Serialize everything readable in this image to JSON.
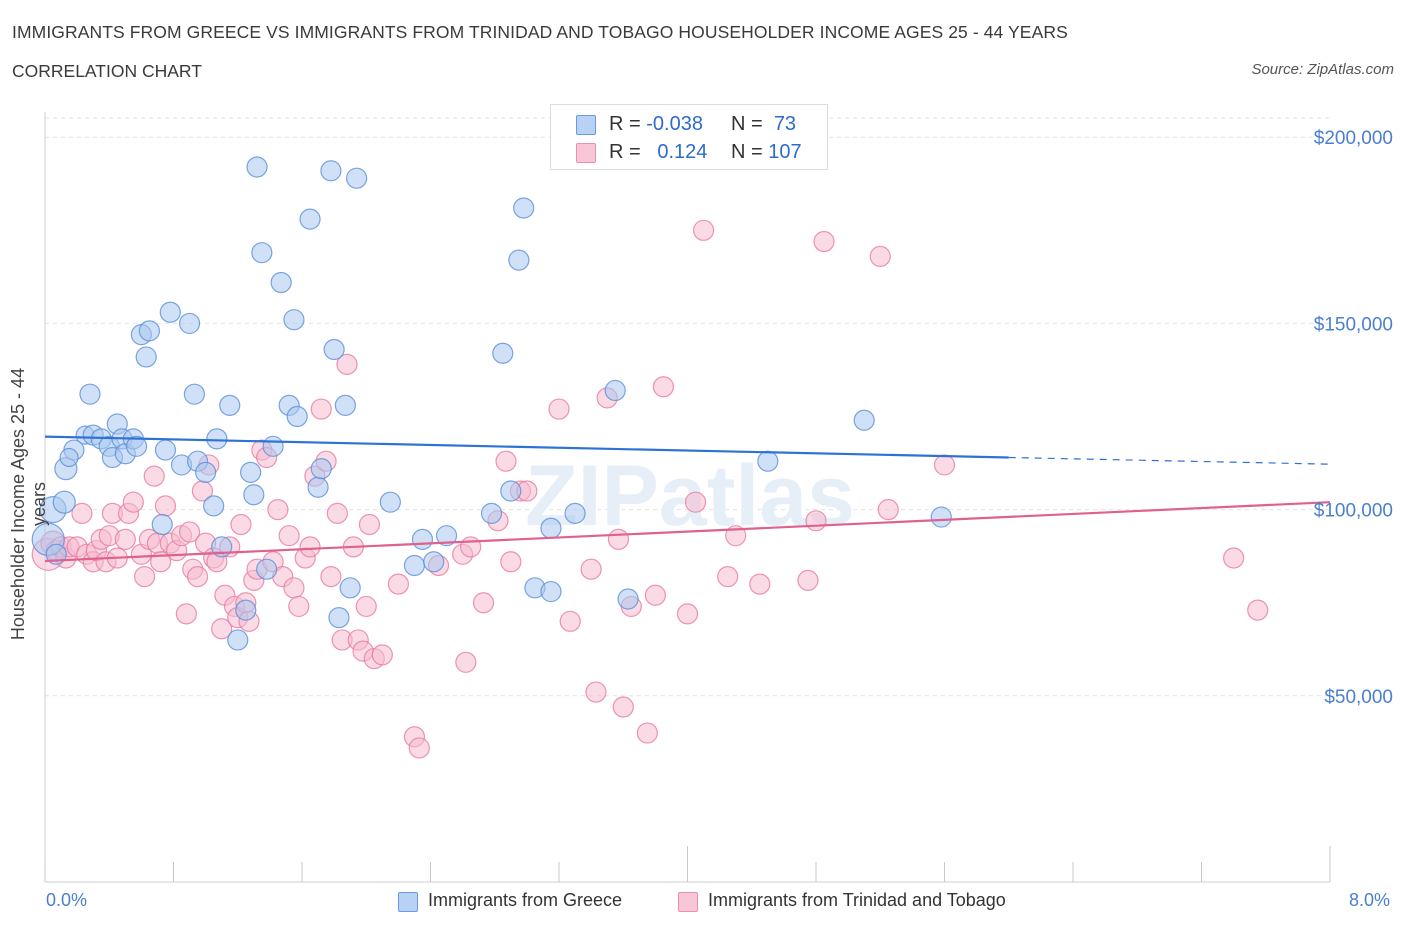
{
  "header": {
    "title": "IMMIGRANTS FROM GREECE VS IMMIGRANTS FROM TRINIDAD AND TOBAGO HOUSEHOLDER INCOME AGES 25 - 44 YEARS",
    "subtitle": "CORRELATION CHART",
    "source": "Source: ZipAtlas.com"
  },
  "legend": {
    "greece": {
      "r_label": "R =",
      "r_value": "-0.038",
      "n_label": "N =",
      "n_value": "73"
    },
    "tt": {
      "r_label": "R =",
      "r_value": "0.124",
      "n_label": "N =",
      "n_value": "107"
    }
  },
  "bottom_legend": {
    "greece_label": "Immigrants from Greece",
    "tt_label": "Immigrants from Trinidad and Tobago"
  },
  "colors": {
    "greece_fill": "#aac8f0",
    "greece_stroke": "#5b8fd8",
    "greece_line": "#2f72d6",
    "tt_fill": "#f6bcd0",
    "tt_stroke": "#e87aa0",
    "tt_line": "#e0608e",
    "tick_text": "#4a7fd0"
  },
  "watermark": "ZIPatlas",
  "chart_data": {
    "type": "scatter",
    "xlabel": "",
    "ylabel": "Householder Income Ages 25 - 44 years",
    "x_tick_labels": {
      "left": "0.0%",
      "right": "8.0%"
    },
    "xlim": [
      0,
      8
    ],
    "ylim": [
      0,
      210000
    ],
    "y_ticks": [
      {
        "value": 50000,
        "label": "$50,000"
      },
      {
        "value": 100000,
        "label": "$100,000"
      },
      {
        "value": 150000,
        "label": "$150,000"
      },
      {
        "value": 200000,
        "label": "$200,000"
      }
    ],
    "grid": true,
    "legend_position": "top-center",
    "series": [
      {
        "name": "Immigrants from Greece",
        "trend": {
          "x0": 0,
          "y0": 119600,
          "x1": 6.0,
          "y1": 114000,
          "dash_to_x": 8.0,
          "dash_to_y": 112200
        },
        "points": [
          [
            0.02,
            92000,
            16
          ],
          [
            0.05,
            100000,
            13
          ],
          [
            0.07,
            88000,
            10
          ],
          [
            0.12,
            102000,
            11
          ],
          [
            0.13,
            111000,
            11
          ],
          [
            0.18,
            116000,
            10
          ],
          [
            0.15,
            114000,
            9
          ],
          [
            0.25,
            120000,
            9
          ],
          [
            0.28,
            131000,
            10
          ],
          [
            0.3,
            120000,
            10
          ],
          [
            0.35,
            119000,
            10
          ],
          [
            0.4,
            117000,
            10
          ],
          [
            0.42,
            114000,
            10
          ],
          [
            0.45,
            123000,
            10
          ],
          [
            0.48,
            119000,
            10
          ],
          [
            0.5,
            115000,
            10
          ],
          [
            0.55,
            119000,
            10
          ],
          [
            0.57,
            117000,
            10
          ],
          [
            0.6,
            147000,
            10
          ],
          [
            0.63,
            141000,
            10
          ],
          [
            0.65,
            148000,
            10
          ],
          [
            0.73,
            96000,
            10
          ],
          [
            0.75,
            116000,
            10
          ],
          [
            0.78,
            153000,
            10
          ],
          [
            0.85,
            112000,
            10
          ],
          [
            0.9,
            150000,
            10
          ],
          [
            0.93,
            131000,
            10
          ],
          [
            0.95,
            113000,
            10
          ],
          [
            1.0,
            110000,
            10
          ],
          [
            1.05,
            101000,
            10
          ],
          [
            1.07,
            119000,
            10
          ],
          [
            1.1,
            90000,
            10
          ],
          [
            1.15,
            128000,
            10
          ],
          [
            1.2,
            65000,
            10
          ],
          [
            1.25,
            73000,
            10
          ],
          [
            1.28,
            110000,
            10
          ],
          [
            1.3,
            104000,
            10
          ],
          [
            1.32,
            192000,
            10
          ],
          [
            1.35,
            169000,
            10
          ],
          [
            1.38,
            84000,
            10
          ],
          [
            1.42,
            117000,
            10
          ],
          [
            1.47,
            161000,
            10
          ],
          [
            1.52,
            128000,
            10
          ],
          [
            1.55,
            151000,
            10
          ],
          [
            1.57,
            125000,
            10
          ],
          [
            1.65,
            178000,
            10
          ],
          [
            1.7,
            106000,
            10
          ],
          [
            1.72,
            111000,
            10
          ],
          [
            1.78,
            191000,
            10
          ],
          [
            1.8,
            143000,
            10
          ],
          [
            1.83,
            71000,
            10
          ],
          [
            1.87,
            128000,
            10
          ],
          [
            1.9,
            79000,
            10
          ],
          [
            1.94,
            189000,
            10
          ],
          [
            2.15,
            102000,
            10
          ],
          [
            2.3,
            85000,
            10
          ],
          [
            2.35,
            92000,
            10
          ],
          [
            2.42,
            86000,
            10
          ],
          [
            2.5,
            93000,
            10
          ],
          [
            2.78,
            99000,
            10
          ],
          [
            2.85,
            142000,
            10
          ],
          [
            2.9,
            105000,
            10
          ],
          [
            2.95,
            167000,
            10
          ],
          [
            2.98,
            181000,
            10
          ],
          [
            3.05,
            79000,
            10
          ],
          [
            3.15,
            95000,
            10
          ],
          [
            3.15,
            78000,
            10
          ],
          [
            3.3,
            99000,
            10
          ],
          [
            3.55,
            132000,
            10
          ],
          [
            3.63,
            76000,
            10
          ],
          [
            4.5,
            113000,
            10
          ],
          [
            5.1,
            124000,
            10
          ],
          [
            5.58,
            98000,
            10
          ]
        ]
      },
      {
        "name": "Immigrants from Trinidad and Tobago",
        "trend": {
          "x0": 0,
          "y0": 86200,
          "x1": 8.0,
          "y1": 102000
        },
        "points": [
          [
            0.02,
            88000,
            16
          ],
          [
            0.05,
            91000,
            12
          ],
          [
            0.07,
            89000,
            10
          ],
          [
            0.1,
            90000,
            10
          ],
          [
            0.13,
            87000,
            10
          ],
          [
            0.15,
            90000,
            10
          ],
          [
            0.2,
            90000,
            10
          ],
          [
            0.23,
            99000,
            10
          ],
          [
            0.26,
            88000,
            10
          ],
          [
            0.3,
            86000,
            10
          ],
          [
            0.32,
            89000,
            10
          ],
          [
            0.35,
            92000,
            10
          ],
          [
            0.38,
            86000,
            10
          ],
          [
            0.4,
            93000,
            10
          ],
          [
            0.42,
            99000,
            10
          ],
          [
            0.45,
            87000,
            10
          ],
          [
            0.5,
            92000,
            10
          ],
          [
            0.52,
            99000,
            10
          ],
          [
            0.55,
            102000,
            10
          ],
          [
            0.6,
            88000,
            10
          ],
          [
            0.62,
            82000,
            10
          ],
          [
            0.65,
            92000,
            10
          ],
          [
            0.68,
            109000,
            10
          ],
          [
            0.7,
            91000,
            10
          ],
          [
            0.72,
            86000,
            10
          ],
          [
            0.75,
            101000,
            10
          ],
          [
            0.78,
            91000,
            10
          ],
          [
            0.82,
            89000,
            10
          ],
          [
            0.85,
            93000,
            10
          ],
          [
            0.88,
            72000,
            10
          ],
          [
            0.9,
            94000,
            10
          ],
          [
            0.92,
            84000,
            10
          ],
          [
            0.95,
            82000,
            10
          ],
          [
            0.98,
            105000,
            10
          ],
          [
            1.0,
            91000,
            10
          ],
          [
            1.02,
            112000,
            10
          ],
          [
            1.05,
            87000,
            10
          ],
          [
            1.07,
            86000,
            10
          ],
          [
            1.1,
            68000,
            10
          ],
          [
            1.12,
            77000,
            10
          ],
          [
            1.15,
            90000,
            10
          ],
          [
            1.18,
            74000,
            10
          ],
          [
            1.2,
            71000,
            10
          ],
          [
            1.22,
            96000,
            10
          ],
          [
            1.25,
            75000,
            10
          ],
          [
            1.27,
            70000,
            10
          ],
          [
            1.3,
            81000,
            10
          ],
          [
            1.32,
            84000,
            10
          ],
          [
            1.35,
            116000,
            10
          ],
          [
            1.38,
            114000,
            10
          ],
          [
            1.42,
            86000,
            10
          ],
          [
            1.45,
            100000,
            10
          ],
          [
            1.48,
            82000,
            10
          ],
          [
            1.52,
            93000,
            10
          ],
          [
            1.55,
            79000,
            10
          ],
          [
            1.58,
            74000,
            10
          ],
          [
            1.62,
            87000,
            10
          ],
          [
            1.65,
            90000,
            10
          ],
          [
            1.68,
            109000,
            10
          ],
          [
            1.72,
            127000,
            10
          ],
          [
            1.75,
            113000,
            10
          ],
          [
            1.78,
            82000,
            10
          ],
          [
            1.82,
            99000,
            10
          ],
          [
            1.85,
            65000,
            10
          ],
          [
            1.88,
            139000,
            10
          ],
          [
            1.92,
            90000,
            10
          ],
          [
            1.95,
            65000,
            10
          ],
          [
            1.98,
            62000,
            10
          ],
          [
            2.0,
            74000,
            10
          ],
          [
            2.02,
            96000,
            10
          ],
          [
            2.05,
            60000,
            10
          ],
          [
            2.1,
            61000,
            10
          ],
          [
            2.2,
            80000,
            10
          ],
          [
            2.3,
            39000,
            10
          ],
          [
            2.33,
            36000,
            10
          ],
          [
            2.45,
            85000,
            10
          ],
          [
            2.6,
            88000,
            10
          ],
          [
            2.62,
            59000,
            10
          ],
          [
            2.65,
            90000,
            10
          ],
          [
            2.73,
            75000,
            10
          ],
          [
            2.82,
            97000,
            10
          ],
          [
            2.87,
            113000,
            10
          ],
          [
            2.9,
            86000,
            10
          ],
          [
            2.96,
            105000,
            10
          ],
          [
            3.0,
            105000,
            10
          ],
          [
            3.2,
            127000,
            10
          ],
          [
            3.27,
            70000,
            10
          ],
          [
            3.4,
            84000,
            10
          ],
          [
            3.43,
            51000,
            10
          ],
          [
            3.5,
            130000,
            10
          ],
          [
            3.57,
            92000,
            10
          ],
          [
            3.6,
            47000,
            10
          ],
          [
            3.65,
            74000,
            10
          ],
          [
            3.75,
            40000,
            10
          ],
          [
            3.8,
            77000,
            10
          ],
          [
            3.85,
            133000,
            10
          ],
          [
            4.0,
            72000,
            10
          ],
          [
            4.05,
            102000,
            10
          ],
          [
            4.1,
            175000,
            10
          ],
          [
            4.25,
            82000,
            10
          ],
          [
            4.3,
            93000,
            10
          ],
          [
            4.45,
            80000,
            10
          ],
          [
            4.75,
            81000,
            10
          ],
          [
            4.8,
            97000,
            10
          ],
          [
            4.85,
            172000,
            10
          ],
          [
            5.2,
            168000,
            10
          ],
          [
            5.25,
            100000,
            10
          ],
          [
            5.6,
            112000,
            10
          ],
          [
            7.4,
            87000,
            10
          ],
          [
            7.55,
            73000,
            10
          ]
        ]
      }
    ]
  }
}
